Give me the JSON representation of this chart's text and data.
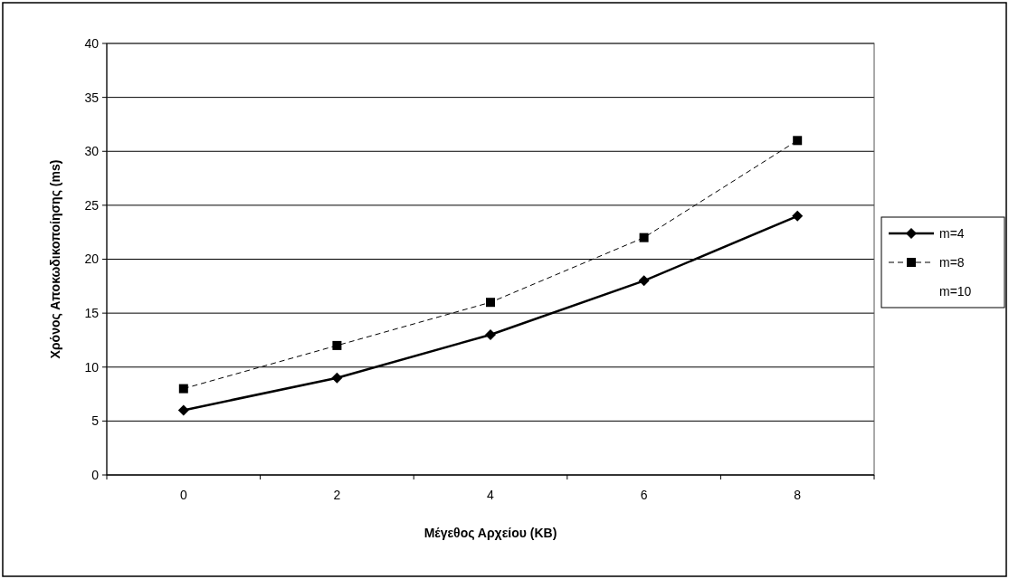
{
  "chart_data": {
    "type": "line",
    "xlabel": "Μέγεθος Αρχείου (KB)",
    "ylabel": "Χρόνος Αποκωδικοποίησης (ms)",
    "categories": [
      "0",
      "2",
      "4",
      "6",
      "8"
    ],
    "series": [
      {
        "name": "m=4",
        "color": "#000000",
        "values": [
          6,
          9,
          13,
          18,
          24
        ],
        "marker": "diamond",
        "line_style": "solid"
      },
      {
        "name": "m=8",
        "color": "#000000",
        "values": [
          8,
          12,
          16,
          22,
          31
        ],
        "marker": "square",
        "line_style": "dashed"
      },
      {
        "name": "m=10",
        "values": [
          null,
          null,
          null,
          null,
          null
        ],
        "marker": "none",
        "line_style": "solid"
      }
    ],
    "ylim": [
      0,
      40
    ],
    "yticks": [
      0,
      5,
      10,
      15,
      20,
      25,
      30,
      35,
      40
    ],
    "grid": "y",
    "legend": "right"
  }
}
